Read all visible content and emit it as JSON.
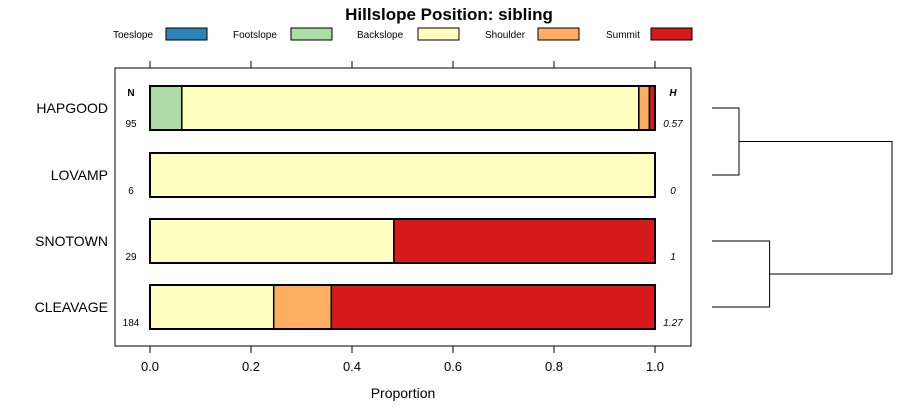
{
  "chart_data": {
    "type": "stacked-bar",
    "orientation": "horizontal",
    "title": "Hillslope Position: sibling",
    "xlabel": "Proportion",
    "ylabel": "",
    "xlim": [
      0,
      1
    ],
    "xticks": [
      "0.0",
      "0.2",
      "0.4",
      "0.6",
      "0.8",
      "1.0"
    ],
    "legend": [
      {
        "name": "Toeslope",
        "color": "#2b83ba"
      },
      {
        "name": "Footslope",
        "color": "#abdda4"
      },
      {
        "name": "Backslope",
        "color": "#ffffbf"
      },
      {
        "name": "Shoulder",
        "color": "#fdae61"
      },
      {
        "name": "Summit",
        "color": "#d7191c"
      }
    ],
    "n_header": "N",
    "h_header": "H",
    "rows": [
      {
        "label": "HAPGOOD",
        "n": "95",
        "h": "0.57",
        "values": {
          "Toeslope": 0.0,
          "Footslope": 0.063,
          "Backslope": 0.905,
          "Shoulder": 0.021,
          "Summit": 0.011
        }
      },
      {
        "label": "LOVAMP",
        "n": "6",
        "h": "0",
        "values": {
          "Toeslope": 0.0,
          "Footslope": 0.0,
          "Backslope": 1.0,
          "Shoulder": 0.0,
          "Summit": 0.0
        }
      },
      {
        "label": "SNOTOWN",
        "n": "29",
        "h": "1",
        "values": {
          "Toeslope": 0.0,
          "Footslope": 0.0,
          "Backslope": 0.483,
          "Shoulder": 0.0,
          "Summit": 0.517
        }
      },
      {
        "label": "CLEAVAGE",
        "n": "184",
        "h": "1.27",
        "values": {
          "Toeslope": 0.0,
          "Footslope": 0.0,
          "Backslope": 0.245,
          "Shoulder": 0.114,
          "Summit": 0.641
        }
      }
    ],
    "dendrogram": {
      "merges": [
        [
          "HAPGOOD",
          "LOVAMP"
        ],
        [
          "SNOTOWN",
          "CLEAVAGE"
        ],
        [
          "HAPGOOD+LOVAMP",
          "SNOTOWN+CLEAVAGE"
        ]
      ],
      "heights": [
        0.15,
        0.32,
        1.0
      ]
    }
  }
}
